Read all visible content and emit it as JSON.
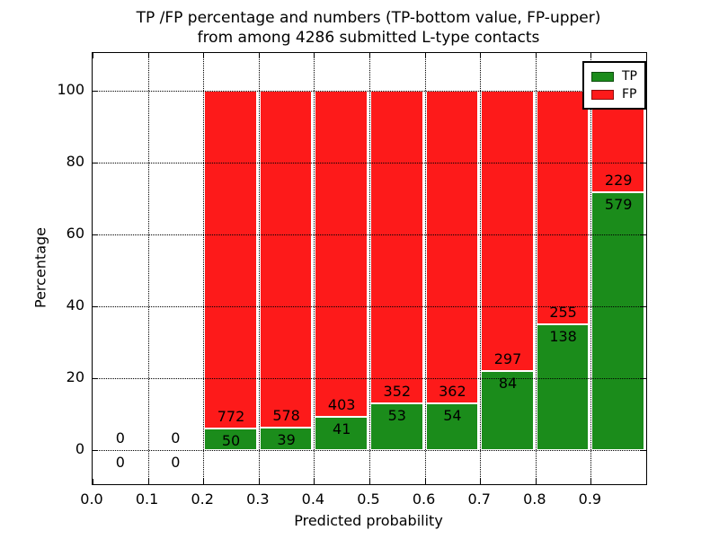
{
  "chart_data": {
    "type": "bar",
    "stacked": true,
    "units": "percent",
    "title": "TP /FP percentage and numbers (TP-bottom value, FP-upper) from among 4286 submitted L-type contacts",
    "title_lines": [
      "TP /FP percentage and numbers (TP-bottom value, FP-upper)",
      "from among 4286 submitted L-type contacts"
    ],
    "xlabel": "Predicted probability",
    "ylabel": "Percentage",
    "xlim": [
      0.0,
      1.0
    ],
    "ylim": [
      -9.5,
      110.5
    ],
    "x_ticks": [
      "0.0",
      "0.1",
      "0.2",
      "0.3",
      "0.4",
      "0.5",
      "0.6",
      "0.7",
      "0.8",
      "0.9"
    ],
    "x_tick_values": [
      0.0,
      0.1,
      0.2,
      0.3,
      0.4,
      0.5,
      0.6,
      0.7,
      0.8,
      0.9
    ],
    "y_ticks": [
      "0",
      "20",
      "40",
      "60",
      "80",
      "100"
    ],
    "y_tick_values": [
      0,
      20,
      40,
      60,
      80,
      100
    ],
    "grid": "dotted",
    "total_submitted": 4286,
    "colors": {
      "tp": "#1b8c1b",
      "fp": "#fd1a1a",
      "edge": "#ffffff",
      "grid": "#000000"
    },
    "legend": {
      "position": "upper right",
      "entries": [
        {
          "label": "TP",
          "color": "#1b8c1b"
        },
        {
          "label": "FP",
          "color": "#fd1a1a"
        }
      ]
    },
    "bins": [
      {
        "range": [
          0.0,
          0.1
        ],
        "tp": 0,
        "fp": 0
      },
      {
        "range": [
          0.1,
          0.2
        ],
        "tp": 0,
        "fp": 0
      },
      {
        "range": [
          0.2,
          0.3
        ],
        "tp": 50,
        "fp": 772
      },
      {
        "range": [
          0.3,
          0.4
        ],
        "tp": 39,
        "fp": 578
      },
      {
        "range": [
          0.4,
          0.5
        ],
        "tp": 41,
        "fp": 403
      },
      {
        "range": [
          0.5,
          0.6
        ],
        "tp": 53,
        "fp": 352
      },
      {
        "range": [
          0.6,
          0.7
        ],
        "tp": 54,
        "fp": 362
      },
      {
        "range": [
          0.7,
          0.8
        ],
        "tp": 84,
        "fp": 297
      },
      {
        "range": [
          0.8,
          0.9
        ],
        "tp": 138,
        "fp": 255
      },
      {
        "range": [
          0.9,
          1.0
        ],
        "tp": 579,
        "fp": 229
      }
    ]
  }
}
